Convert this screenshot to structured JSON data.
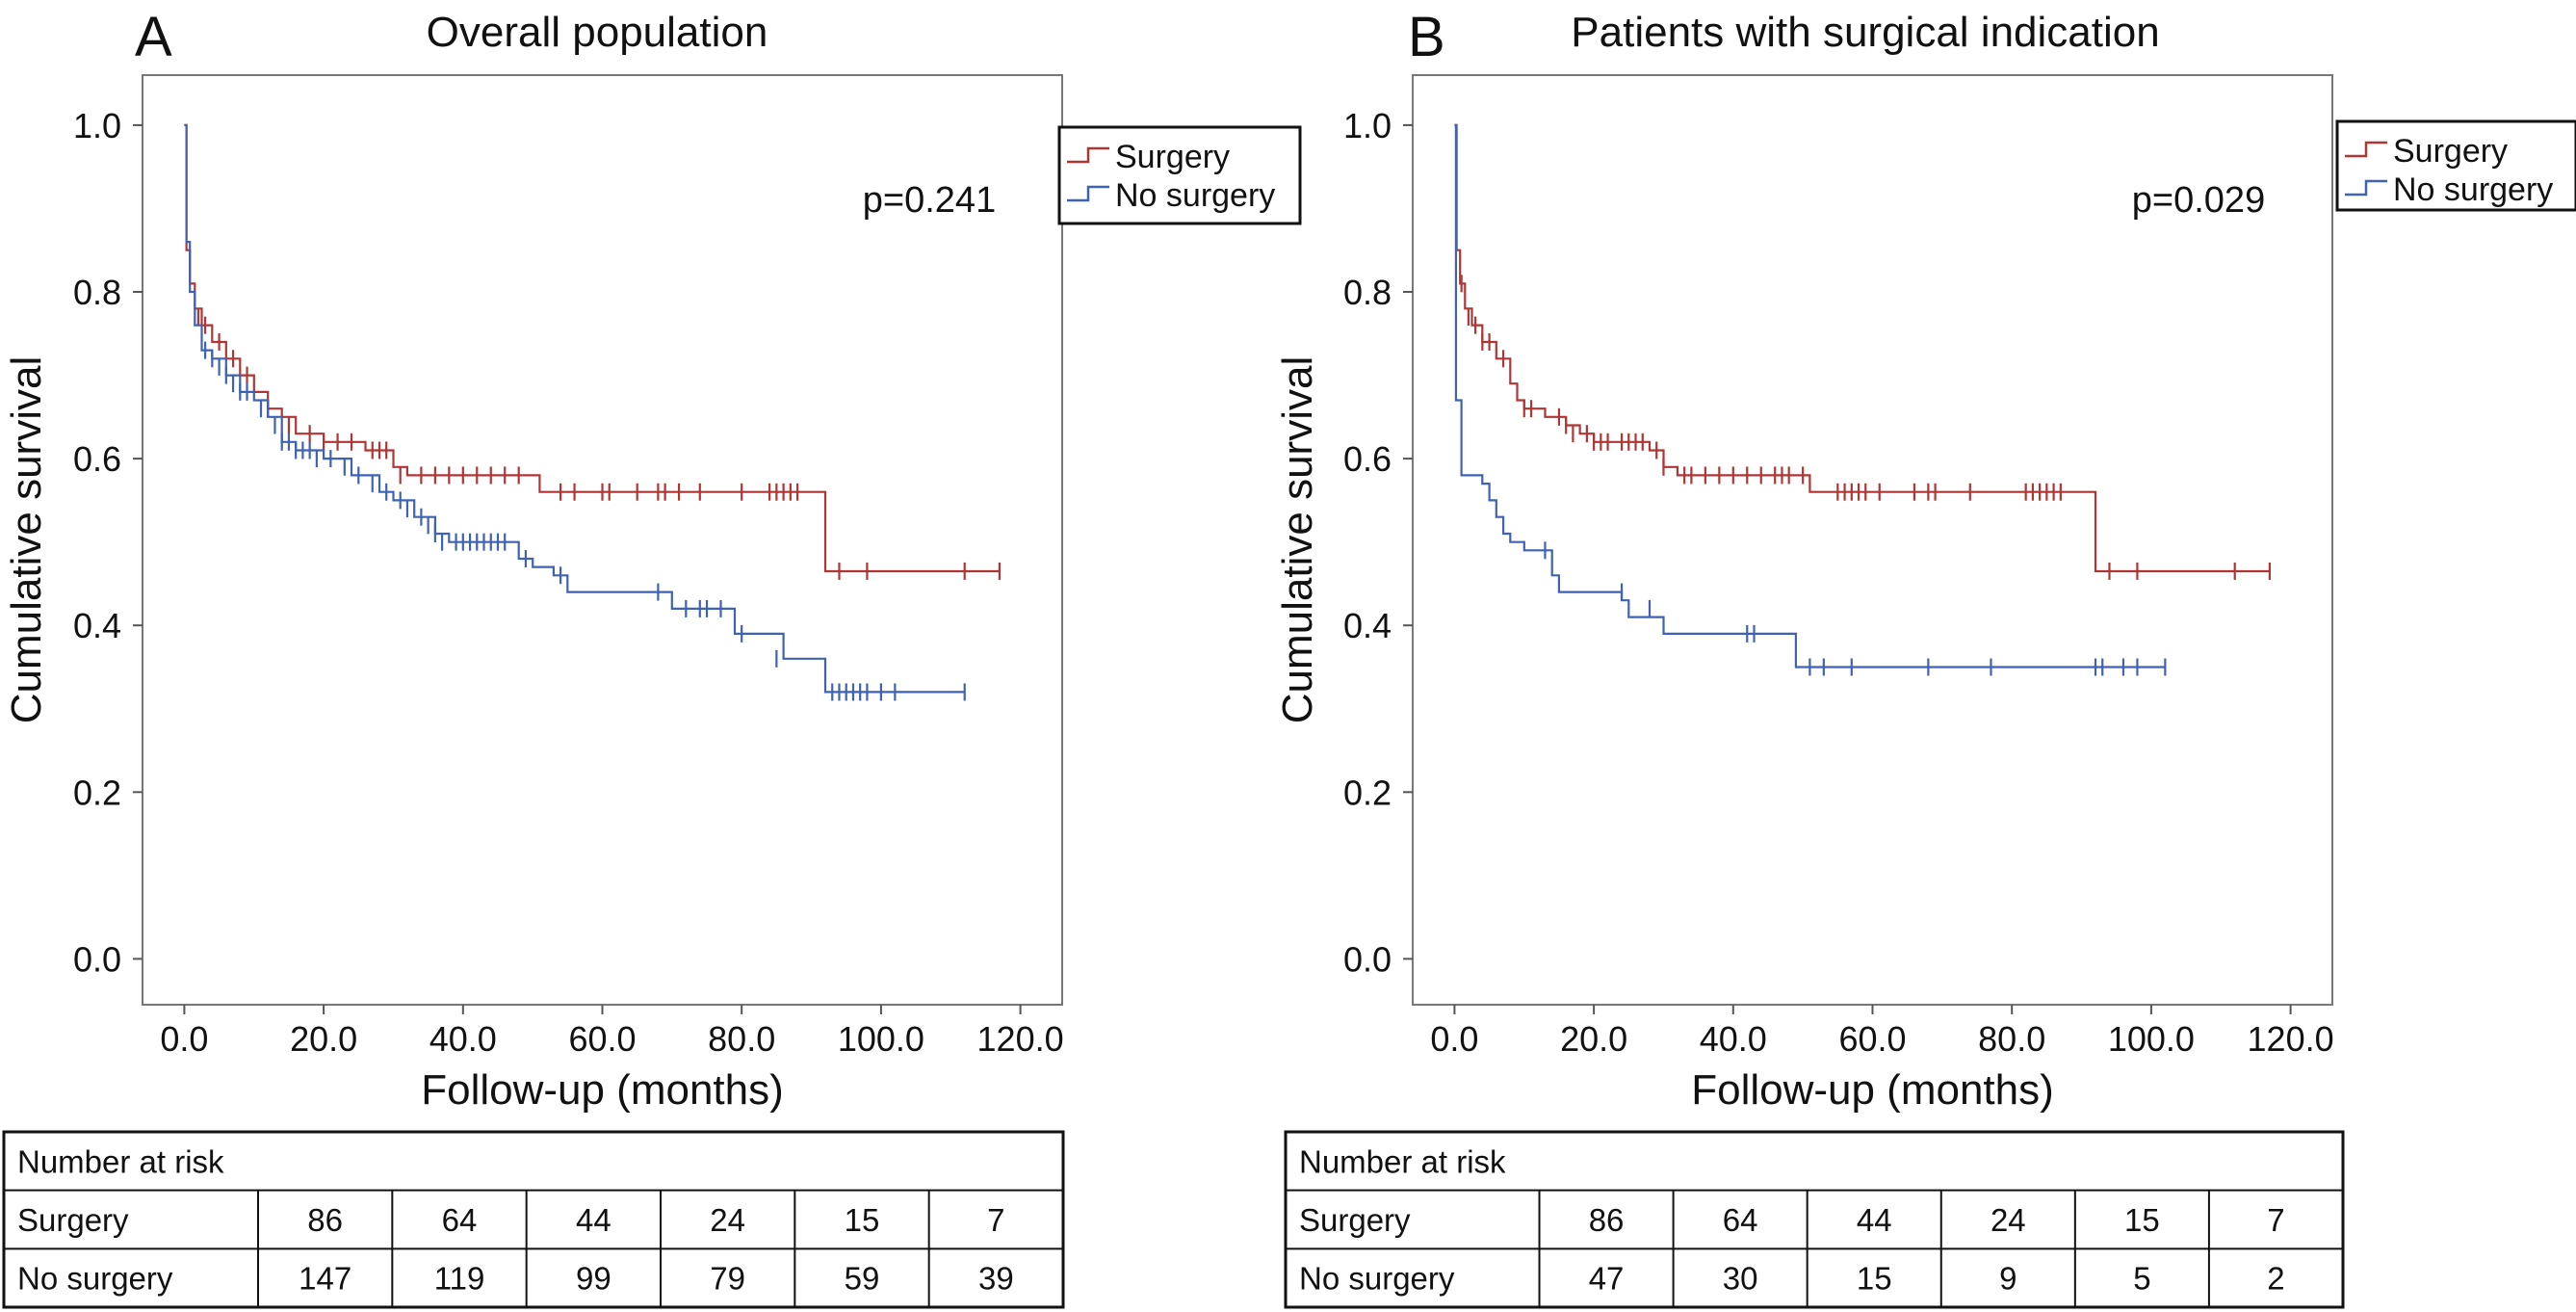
{
  "chart_data": [
    {
      "type": "line",
      "panel_letter": "A",
      "title": "Overall population",
      "xlabel": "Follow-up (months)",
      "ylabel": "Cumulative survival",
      "xlim": [
        -6,
        126
      ],
      "ylim": [
        -0.055,
        1.06
      ],
      "x_ticks": [
        0,
        20,
        40,
        60,
        80,
        100,
        120
      ],
      "x_tick_labels": [
        "0.0",
        "20.0",
        "40.0",
        "60.0",
        "80.0",
        "100.0",
        "120.0"
      ],
      "y_ticks": [
        0,
        0.2,
        0.4,
        0.6,
        0.8,
        1.0
      ],
      "y_tick_labels": [
        "0.0",
        "0.2",
        "0.4",
        "0.6",
        "0.8",
        "1.0"
      ],
      "grid": false,
      "legend_position": "top-right",
      "p_value": "p=0.241",
      "series": [
        {
          "name": "Surgery",
          "color": "#b03535",
          "steps": [
            [
              0,
              1.0
            ],
            [
              0.3,
              0.85
            ],
            [
              0.8,
              0.81
            ],
            [
              1.5,
              0.78
            ],
            [
              2.5,
              0.76
            ],
            [
              4,
              0.74
            ],
            [
              6,
              0.72
            ],
            [
              8,
              0.7
            ],
            [
              10,
              0.68
            ],
            [
              12,
              0.66
            ],
            [
              14,
              0.65
            ],
            [
              16,
              0.63
            ],
            [
              20,
              0.62
            ],
            [
              26,
              0.61
            ],
            [
              30,
              0.59
            ],
            [
              32,
              0.58
            ],
            [
              51,
              0.56
            ],
            [
              92,
              0.465
            ]
          ],
          "end": 117,
          "censors": [
            [
              2,
              0.77
            ],
            [
              3,
              0.76
            ],
            [
              5,
              0.74
            ],
            [
              7,
              0.72
            ],
            [
              9,
              0.7
            ],
            [
              12,
              0.66
            ],
            [
              15,
              0.64
            ],
            [
              18,
              0.63
            ],
            [
              20,
              0.62
            ],
            [
              22,
              0.62
            ],
            [
              24,
              0.62
            ],
            [
              27,
              0.61
            ],
            [
              28,
              0.61
            ],
            [
              29,
              0.61
            ],
            [
              31,
              0.58
            ],
            [
              34,
              0.58
            ],
            [
              36,
              0.58
            ],
            [
              38,
              0.58
            ],
            [
              40,
              0.58
            ],
            [
              42,
              0.58
            ],
            [
              44,
              0.58
            ],
            [
              46,
              0.58
            ],
            [
              48,
              0.58
            ],
            [
              54,
              0.56
            ],
            [
              56,
              0.56
            ],
            [
              60,
              0.56
            ],
            [
              61,
              0.56
            ],
            [
              65,
              0.56
            ],
            [
              68,
              0.56
            ],
            [
              69,
              0.56
            ],
            [
              71,
              0.56
            ],
            [
              74,
              0.56
            ],
            [
              80,
              0.56
            ],
            [
              84,
              0.56
            ],
            [
              85,
              0.56
            ],
            [
              86,
              0.56
            ],
            [
              87,
              0.56
            ],
            [
              88,
              0.56
            ],
            [
              94,
              0.465
            ],
            [
              98,
              0.465
            ],
            [
              112,
              0.465
            ],
            [
              117,
              0.465
            ]
          ]
        },
        {
          "name": "No surgery",
          "color": "#3f62b3",
          "steps": [
            [
              0,
              1.0
            ],
            [
              0.3,
              0.86
            ],
            [
              0.8,
              0.8
            ],
            [
              1.5,
              0.76
            ],
            [
              2.5,
              0.73
            ],
            [
              4,
              0.72
            ],
            [
              6,
              0.7
            ],
            [
              8,
              0.68
            ],
            [
              10,
              0.67
            ],
            [
              12,
              0.65
            ],
            [
              14,
              0.62
            ],
            [
              16,
              0.61
            ],
            [
              20,
              0.6
            ],
            [
              24,
              0.58
            ],
            [
              28,
              0.56
            ],
            [
              30,
              0.55
            ],
            [
              33,
              0.53
            ],
            [
              36,
              0.51
            ],
            [
              38,
              0.5
            ],
            [
              48,
              0.48
            ],
            [
              50,
              0.47
            ],
            [
              53,
              0.46
            ],
            [
              55,
              0.44
            ],
            [
              70,
              0.42
            ],
            [
              79,
              0.39
            ],
            [
              86,
              0.36
            ],
            [
              92,
              0.32
            ]
          ],
          "end": 112,
          "censors": [
            [
              3,
              0.73
            ],
            [
              4,
              0.72
            ],
            [
              5,
              0.71
            ],
            [
              6,
              0.7
            ],
            [
              7,
              0.69
            ],
            [
              8,
              0.68
            ],
            [
              9,
              0.68
            ],
            [
              11,
              0.66
            ],
            [
              13,
              0.64
            ],
            [
              14,
              0.62
            ],
            [
              15,
              0.62
            ],
            [
              16,
              0.61
            ],
            [
              17,
              0.61
            ],
            [
              18,
              0.61
            ],
            [
              19,
              0.6
            ],
            [
              21,
              0.6
            ],
            [
              23,
              0.59
            ],
            [
              25,
              0.58
            ],
            [
              27,
              0.57
            ],
            [
              29,
              0.56
            ],
            [
              31,
              0.55
            ],
            [
              32,
              0.54
            ],
            [
              34,
              0.53
            ],
            [
              35,
              0.52
            ],
            [
              36,
              0.51
            ],
            [
              37,
              0.5
            ],
            [
              39,
              0.5
            ],
            [
              40,
              0.5
            ],
            [
              41,
              0.5
            ],
            [
              42,
              0.5
            ],
            [
              43,
              0.5
            ],
            [
              44,
              0.5
            ],
            [
              45,
              0.5
            ],
            [
              46,
              0.5
            ],
            [
              49,
              0.48
            ],
            [
              54,
              0.46
            ],
            [
              68,
              0.44
            ],
            [
              72,
              0.42
            ],
            [
              74,
              0.42
            ],
            [
              75,
              0.42
            ],
            [
              77,
              0.42
            ],
            [
              80,
              0.39
            ],
            [
              85,
              0.36
            ],
            [
              93,
              0.32
            ],
            [
              94,
              0.32
            ],
            [
              95,
              0.32
            ],
            [
              96,
              0.32
            ],
            [
              97,
              0.32
            ],
            [
              98,
              0.32
            ],
            [
              100,
              0.32
            ],
            [
              102,
              0.32
            ],
            [
              112,
              0.32
            ]
          ]
        }
      ],
      "risk_table": {
        "header": "Number at risk",
        "rows": [
          {
            "label": "Surgery",
            "values": [
              "86",
              "64",
              "44",
              "24",
              "15",
              "7"
            ]
          },
          {
            "label": "No surgery",
            "values": [
              "147",
              "119",
              "99",
              "79",
              "59",
              "39"
            ]
          }
        ]
      }
    },
    {
      "type": "line",
      "panel_letter": "B",
      "title": "Patients with surgical indication",
      "xlabel": "Follow-up (months)",
      "ylabel": "Cumulative survival",
      "xlim": [
        -6,
        126
      ],
      "ylim": [
        -0.055,
        1.06
      ],
      "x_ticks": [
        0,
        20,
        40,
        60,
        80,
        100,
        120
      ],
      "x_tick_labels": [
        "0.0",
        "20.0",
        "40.0",
        "60.0",
        "80.0",
        "100.0",
        "120.0"
      ],
      "y_ticks": [
        0,
        0.2,
        0.4,
        0.6,
        0.8,
        1.0
      ],
      "y_tick_labels": [
        "0.0",
        "0.2",
        "0.4",
        "0.6",
        "0.8",
        "1.0"
      ],
      "grid": false,
      "legend_position": "top-right",
      "p_value": "p=0.029",
      "series": [
        {
          "name": "Surgery",
          "color": "#b03535",
          "steps": [
            [
              0,
              1.0
            ],
            [
              0.3,
              0.85
            ],
            [
              0.8,
              0.81
            ],
            [
              1.5,
              0.78
            ],
            [
              2.5,
              0.76
            ],
            [
              4,
              0.74
            ],
            [
              6,
              0.72
            ],
            [
              8,
              0.69
            ],
            [
              9,
              0.67
            ],
            [
              10,
              0.66
            ],
            [
              13,
              0.65
            ],
            [
              16,
              0.64
            ],
            [
              18,
              0.63
            ],
            [
              20,
              0.62
            ],
            [
              28,
              0.61
            ],
            [
              30,
              0.59
            ],
            [
              32,
              0.58
            ],
            [
              51,
              0.56
            ],
            [
              92,
              0.465
            ]
          ],
          "end": 117,
          "censors": [
            [
              1,
              0.81
            ],
            [
              2,
              0.77
            ],
            [
              3,
              0.76
            ],
            [
              4,
              0.74
            ],
            [
              5,
              0.74
            ],
            [
              7,
              0.72
            ],
            [
              10,
              0.66
            ],
            [
              11,
              0.66
            ],
            [
              15,
              0.65
            ],
            [
              16,
              0.64
            ],
            [
              17,
              0.63
            ],
            [
              19,
              0.63
            ],
            [
              20,
              0.62
            ],
            [
              21,
              0.62
            ],
            [
              22,
              0.62
            ],
            [
              24,
              0.62
            ],
            [
              25,
              0.62
            ],
            [
              26,
              0.62
            ],
            [
              27,
              0.62
            ],
            [
              29,
              0.61
            ],
            [
              30,
              0.59
            ],
            [
              33,
              0.58
            ],
            [
              34,
              0.58
            ],
            [
              36,
              0.58
            ],
            [
              38,
              0.58
            ],
            [
              40,
              0.58
            ],
            [
              42,
              0.58
            ],
            [
              44,
              0.58
            ],
            [
              46,
              0.58
            ],
            [
              47,
              0.58
            ],
            [
              48,
              0.58
            ],
            [
              50,
              0.58
            ],
            [
              55,
              0.56
            ],
            [
              56,
              0.56
            ],
            [
              57,
              0.56
            ],
            [
              58,
              0.56
            ],
            [
              59,
              0.56
            ],
            [
              61,
              0.56
            ],
            [
              66,
              0.56
            ],
            [
              68,
              0.56
            ],
            [
              69,
              0.56
            ],
            [
              74,
              0.56
            ],
            [
              82,
              0.56
            ],
            [
              83,
              0.56
            ],
            [
              84,
              0.56
            ],
            [
              85,
              0.56
            ],
            [
              86,
              0.56
            ],
            [
              87,
              0.56
            ],
            [
              94,
              0.465
            ],
            [
              98,
              0.465
            ],
            [
              112,
              0.465
            ],
            [
              117,
              0.465
            ]
          ]
        },
        {
          "name": "No surgery",
          "color": "#3f62b3",
          "steps": [
            [
              0,
              1.0
            ],
            [
              0.2,
              0.67
            ],
            [
              1,
              0.58
            ],
            [
              4,
              0.57
            ],
            [
              5,
              0.55
            ],
            [
              6,
              0.53
            ],
            [
              7,
              0.51
            ],
            [
              8,
              0.5
            ],
            [
              10,
              0.49
            ],
            [
              14,
              0.46
            ],
            [
              15,
              0.44
            ],
            [
              24,
              0.43
            ],
            [
              25,
              0.41
            ],
            [
              30,
              0.39
            ],
            [
              49,
              0.35
            ]
          ],
          "end": 102,
          "censors": [
            [
              13,
              0.49
            ],
            [
              24,
              0.44
            ],
            [
              28,
              0.42
            ],
            [
              42,
              0.39
            ],
            [
              43,
              0.39
            ],
            [
              51,
              0.35
            ],
            [
              53,
              0.35
            ],
            [
              57,
              0.35
            ],
            [
              68,
              0.35
            ],
            [
              77,
              0.35
            ],
            [
              92,
              0.35
            ],
            [
              93,
              0.35
            ],
            [
              96,
              0.35
            ],
            [
              98,
              0.35
            ],
            [
              102,
              0.35
            ]
          ]
        }
      ],
      "risk_table": {
        "header": "Number at risk",
        "rows": [
          {
            "label": "Surgery",
            "values": [
              "86",
              "64",
              "44",
              "24",
              "15",
              "7"
            ]
          },
          {
            "label": "No surgery",
            "values": [
              "47",
              "30",
              "15",
              "9",
              "5",
              "2"
            ]
          }
        ]
      }
    }
  ]
}
